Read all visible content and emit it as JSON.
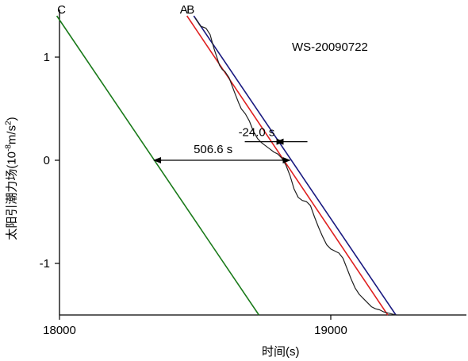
{
  "chart_data": {
    "type": "line",
    "title": "WS-20090722",
    "xlabel": "时间(s)",
    "ylabel_main": "太阳引潮力场(10",
    "ylabel_exp": "-8",
    "ylabel_mid": "m/s",
    "ylabel_exp2": "2",
    "ylabel_end": ")",
    "xlim": [
      18000,
      19500
    ],
    "ylim": [
      -1.5,
      1.4
    ],
    "xticks": [
      18000,
      19000
    ],
    "xtick_labels": [
      "18000",
      "19000"
    ],
    "yticks": [
      1,
      0,
      -1
    ],
    "ytick_labels": [
      "1",
      "0",
      "-1"
    ],
    "grid": false,
    "series": [
      {
        "name": "A",
        "color": "#e02020",
        "x": [
          18470,
          19210
        ],
        "y": [
          1.4,
          -1.5
        ]
      },
      {
        "name": "B",
        "color": "#1a1a80",
        "x": [
          18495,
          19240
        ],
        "y": [
          1.4,
          -1.5
        ]
      },
      {
        "name": "C",
        "color": "#1a7a1a",
        "x": [
          17990,
          18735
        ],
        "y": [
          1.4,
          -1.5
        ]
      },
      {
        "name": "",
        "color": "#202020",
        "x": [
          18500,
          18520,
          18540,
          18555,
          18570,
          18590,
          18600,
          18610,
          18625,
          18645,
          18660,
          18670,
          18685,
          18700,
          18715,
          18730,
          18745,
          18760,
          18775,
          18790,
          18805,
          18820,
          18835,
          18850,
          18865,
          18880,
          18895,
          18910,
          18925,
          18940,
          18955,
          18970,
          18985,
          19000,
          19015,
          19030,
          19045,
          19060,
          19075,
          19090,
          19105,
          19120,
          19135,
          19150,
          19165,
          19180,
          19195,
          19210,
          19225,
          19240
        ],
        "y": [
          1.38,
          1.3,
          1.28,
          1.22,
          1.08,
          0.92,
          0.88,
          0.86,
          0.8,
          0.66,
          0.56,
          0.5,
          0.45,
          0.38,
          0.28,
          0.21,
          0.17,
          0.14,
          0.11,
          0.08,
          0.06,
          0.02,
          -0.05,
          -0.15,
          -0.28,
          -0.36,
          -0.39,
          -0.4,
          -0.44,
          -0.55,
          -0.65,
          -0.74,
          -0.82,
          -0.86,
          -0.88,
          -0.9,
          -0.95,
          -1.05,
          -1.15,
          -1.24,
          -1.3,
          -1.34,
          -1.38,
          -1.42,
          -1.44,
          -1.45,
          -1.47,
          -1.48,
          -1.49,
          -1.5
        ]
      }
    ],
    "annotations": [
      {
        "text": "-24.0 s",
        "arrow_y": 0.18,
        "x_from": 18835,
        "x_to": 18800
      },
      {
        "text": "506.6 s",
        "arrow_y": 0.0,
        "x_from": 18348,
        "x_to": 18855
      }
    ]
  }
}
